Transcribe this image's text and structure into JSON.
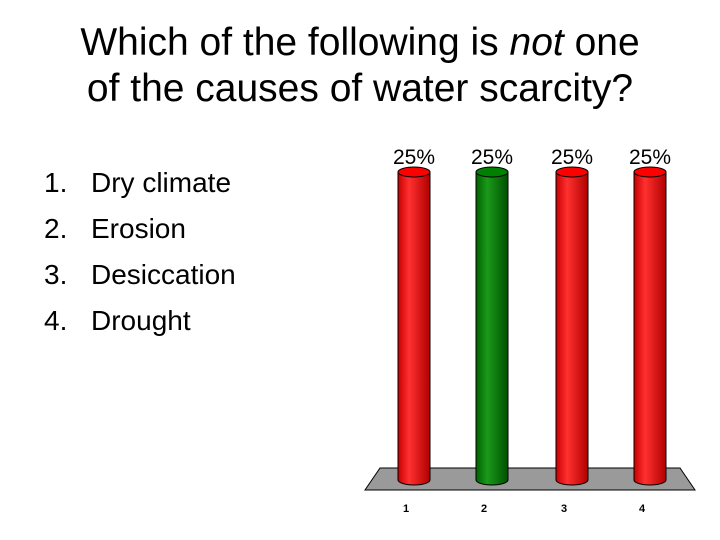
{
  "slide": {
    "title_line1_pre": "Which of the following is ",
    "title_line1_em": "not",
    "title_line1_post": " one",
    "title_line2": "of the causes of water scarcity?"
  },
  "answers": [
    {
      "number": "1.",
      "text": "Dry climate"
    },
    {
      "number": "2.",
      "text": "Erosion"
    },
    {
      "number": "3.",
      "text": "Desiccation"
    },
    {
      "number": "4.",
      "text": "Drought"
    }
  ],
  "chart_data": {
    "type": "bar",
    "categories": [
      "1",
      "2",
      "3",
      "4"
    ],
    "values": [
      25,
      25,
      25,
      25
    ],
    "data_labels": [
      "25%",
      "25%",
      "25%",
      "25%"
    ],
    "ylim": [
      0,
      25
    ],
    "colors": [
      "#ff0000",
      "#008000",
      "#ff0000",
      "#ff0000"
    ],
    "grid": false,
    "style": "3d-cylinder"
  }
}
